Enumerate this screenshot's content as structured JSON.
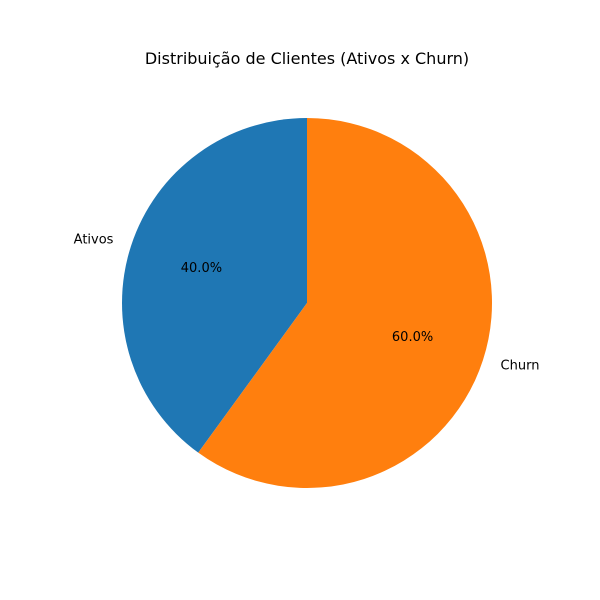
{
  "chart_data": {
    "type": "pie",
    "title": "Distribuição de Clientes (Ativos x Churn)",
    "categories": [
      "Ativos",
      "Churn"
    ],
    "values": [
      40,
      60
    ],
    "percent_labels": [
      "40.0%",
      "60.0%"
    ],
    "colors": [
      "#1f77b4",
      "#ff7f0e"
    ],
    "start_angle_deg": 90,
    "direction": "counterclockwise",
    "legend": "none"
  }
}
